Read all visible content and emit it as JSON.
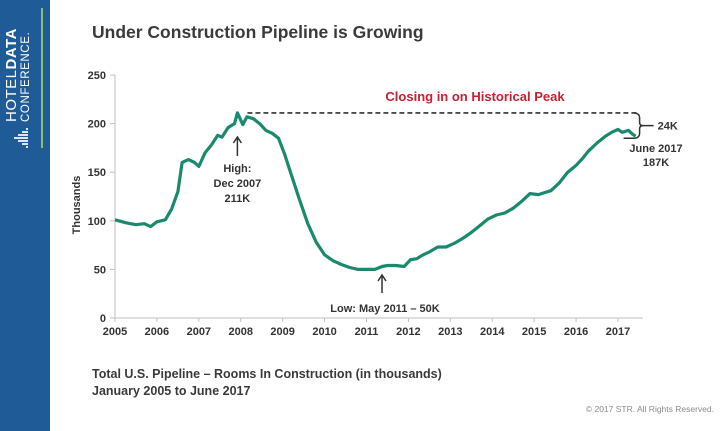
{
  "branding": {
    "logo_line1_a": "HOTEL",
    "logo_line1_b": "DATA",
    "logo_line2": "CONFERENCE."
  },
  "header": {
    "title": "Under Construction Pipeline is Growing"
  },
  "footer": {
    "caption_line1": "Total U.S. Pipeline – Rooms In Construction (in thousands)",
    "caption_line2": "January 2005 to June 2017",
    "copyright": "© 2017 STR. All Rights Reserved."
  },
  "chart_data": {
    "type": "line",
    "title": "Under Construction Pipeline is Growing",
    "xlabel": "",
    "ylabel": "Thousands",
    "ylim": [
      0,
      250
    ],
    "xlim": [
      2005,
      2017.5
    ],
    "yticks": [
      0,
      50,
      100,
      150,
      200,
      250
    ],
    "xticks": [
      "2005",
      "2006",
      "2007",
      "2008",
      "2009",
      "2010",
      "2011",
      "2012",
      "2013",
      "2014",
      "2015",
      "2016",
      "2017"
    ],
    "grid": false,
    "line_color": "#1a8a6e",
    "series": [
      {
        "name": "Total U.S. Pipeline - Rooms In Construction",
        "x": [
          2005.0,
          2005.25,
          2005.5,
          2005.7,
          2005.85,
          2006.0,
          2006.2,
          2006.35,
          2006.5,
          2006.6,
          2006.75,
          2006.9,
          2007.0,
          2007.15,
          2007.3,
          2007.45,
          2007.55,
          2007.7,
          2007.85,
          2007.92,
          2008.05,
          2008.15,
          2008.3,
          2008.45,
          2008.6,
          2008.75,
          2008.9,
          2009.05,
          2009.2,
          2009.4,
          2009.6,
          2009.8,
          2010.0,
          2010.2,
          2010.4,
          2010.6,
          2010.8,
          2011.0,
          2011.2,
          2011.37,
          2011.5,
          2011.7,
          2011.9,
          2012.05,
          2012.2,
          2012.35,
          2012.5,
          2012.7,
          2012.9,
          2013.1,
          2013.3,
          2013.5,
          2013.7,
          2013.9,
          2014.1,
          2014.3,
          2014.5,
          2014.7,
          2014.9,
          2015.1,
          2015.25,
          2015.4,
          2015.6,
          2015.8,
          2016.0,
          2016.15,
          2016.3,
          2016.5,
          2016.7,
          2016.85,
          2017.0,
          2017.1,
          2017.25,
          2017.35,
          2017.42
        ],
        "values": [
          101,
          98,
          96,
          97,
          94,
          99,
          101,
          112,
          130,
          160,
          163,
          160,
          156,
          170,
          178,
          188,
          186,
          196,
          200,
          211,
          199,
          207,
          205,
          200,
          193,
          190,
          185,
          168,
          148,
          122,
          97,
          78,
          65,
          59,
          55,
          52,
          50,
          50,
          50,
          53,
          54,
          54,
          53,
          60,
          61,
          65,
          68,
          73,
          73,
          77,
          82,
          88,
          95,
          102,
          106,
          108,
          113,
          120,
          128,
          127,
          129,
          131,
          139,
          150,
          157,
          164,
          172,
          180,
          187,
          191,
          194,
          191,
          193,
          189,
          187
        ]
      }
    ],
    "annotations": [
      {
        "id": "high",
        "text_lines": [
          "High:",
          "Dec 2007",
          "211K"
        ],
        "x": 2007.92,
        "y": 211
      },
      {
        "id": "low",
        "text": "Low: May 2011 – 50K",
        "x": 2011.37,
        "y": 50
      },
      {
        "id": "current",
        "text_lines": [
          "June 2017",
          "187K"
        ],
        "x": 2017.42,
        "y": 187
      },
      {
        "id": "gap",
        "text": "24K"
      },
      {
        "id": "peak_note",
        "text": "Closing in on Historical Peak",
        "color": "#c8202f"
      }
    ]
  }
}
